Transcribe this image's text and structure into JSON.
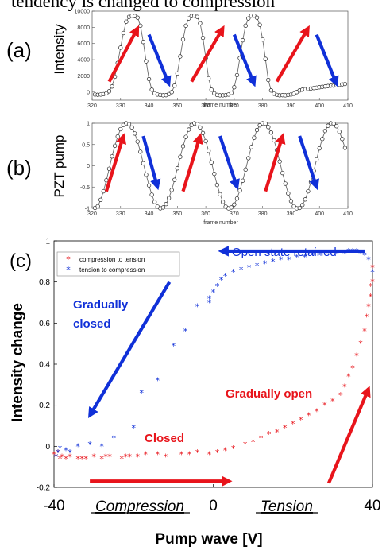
{
  "header_fragment": "tendency is changed to compression",
  "colors": {
    "red": "#e8141b",
    "blue": "#1030d8",
    "line": "#6b6b6b",
    "marker_edge": "#222222"
  },
  "chart_data": [
    {
      "type": "line",
      "panel_label": "(a)",
      "xlabel": "frame number",
      "ylabel": "Intensity",
      "xlim": [
        320,
        410
      ],
      "ylim": [
        -1000,
        10000
      ],
      "x_ticks": [
        320,
        330,
        340,
        350,
        360,
        370,
        380,
        390,
        400,
        410
      ],
      "y_ticks": [
        0,
        2000,
        4000,
        6000,
        8000,
        10000
      ],
      "series": [
        {
          "x": [
            321,
            322,
            323,
            324,
            325,
            326,
            327,
            328,
            329,
            330,
            331,
            332,
            333,
            334,
            335,
            336,
            337,
            338,
            339,
            340,
            341,
            342,
            343,
            344,
            345,
            346,
            347,
            348,
            349,
            350,
            351,
            352,
            353,
            354,
            355,
            356,
            357,
            358,
            359,
            360,
            361,
            362,
            363,
            364,
            365,
            366,
            367,
            368,
            369,
            370,
            371,
            372,
            373,
            374,
            375,
            376,
            377,
            378,
            379,
            380,
            381,
            382,
            383,
            384,
            385,
            386,
            387,
            388,
            389,
            390,
            391,
            392,
            393,
            394,
            395,
            396,
            397,
            398,
            399,
            400,
            401,
            402,
            403,
            404,
            405,
            406,
            407,
            408,
            409
          ],
          "y": [
            -300,
            -330,
            -300,
            -250,
            -150,
            100,
            700,
            1900,
            3600,
            5500,
            7300,
            8700,
            9300,
            9450,
            9400,
            9200,
            8200,
            6200,
            3800,
            1600,
            300,
            -150,
            -300,
            -350,
            -400,
            -380,
            -250,
            0,
            800,
            2300,
            4400,
            6500,
            8200,
            9100,
            9400,
            9450,
            9300,
            8500,
            6700,
            4200,
            1700,
            300,
            -150,
            -350,
            -400,
            -400,
            -380,
            -300,
            -100,
            600,
            2100,
            4200,
            6400,
            8200,
            9100,
            9450,
            9450,
            9200,
            8300,
            6500,
            4100,
            1500,
            200,
            -200,
            -350,
            -400,
            -380,
            -400,
            -350,
            -300,
            -200,
            0,
            200,
            300,
            350,
            400,
            450,
            500,
            550,
            600,
            650,
            700,
            750,
            800,
            800,
            850,
            900,
            950,
            1000
          ]
        }
      ],
      "arrows": [
        {
          "color": "red",
          "from": [
            326,
            1300
          ],
          "to": [
            336,
            7900
          ]
        },
        {
          "color": "blue",
          "from": [
            340,
            7100
          ],
          "to": [
            347,
            1000
          ]
        },
        {
          "color": "red",
          "from": [
            355,
            1300
          ],
          "to": [
            366,
            7900
          ]
        },
        {
          "color": "blue",
          "from": [
            370,
            7100
          ],
          "to": [
            377,
            1000
          ]
        },
        {
          "color": "red",
          "from": [
            385,
            1300
          ],
          "to": [
            396,
            7900
          ]
        },
        {
          "color": "blue",
          "from": [
            399,
            7100
          ],
          "to": [
            406,
            1000
          ]
        }
      ]
    },
    {
      "type": "line",
      "panel_label": "(b)",
      "xlabel": "frame number",
      "ylabel": "PZT pump",
      "xlim": [
        320,
        410
      ],
      "ylim": [
        -1,
        1
      ],
      "x_ticks": [
        320,
        330,
        340,
        350,
        360,
        370,
        380,
        390,
        400,
        410
      ],
      "y_ticks": [
        -1,
        -0.5,
        0,
        0.5,
        1
      ],
      "series": [
        {
          "x": [
            321,
            322,
            323,
            324,
            325,
            326,
            327,
            328,
            329,
            330,
            331,
            332,
            333,
            334,
            335,
            336,
            337,
            338,
            339,
            340,
            341,
            342,
            343,
            344,
            345,
            346,
            347,
            348,
            349,
            350,
            351,
            352,
            353,
            354,
            355,
            356,
            357,
            358,
            359,
            360,
            361,
            362,
            363,
            364,
            365,
            366,
            367,
            368,
            369,
            370,
            371,
            372,
            373,
            374,
            375,
            376,
            377,
            378,
            379,
            380,
            381,
            382,
            383,
            384,
            385,
            386,
            387,
            388,
            389,
            390,
            391,
            392,
            393,
            394,
            395,
            396,
            397,
            398,
            399,
            400,
            401,
            402,
            403,
            404,
            405,
            406,
            407,
            408,
            409
          ],
          "y": [
            -0.99,
            -0.95,
            -0.8,
            -0.6,
            -0.34,
            -0.07,
            0.22,
            0.47,
            0.69,
            0.86,
            0.96,
            1.0,
            0.98,
            0.9,
            0.76,
            0.57,
            0.33,
            0.06,
            -0.21,
            -0.46,
            -0.68,
            -0.85,
            -0.96,
            -1.0,
            -0.98,
            -0.9,
            -0.76,
            -0.57,
            -0.33,
            -0.06,
            0.21,
            0.46,
            0.68,
            0.85,
            0.96,
            1.0,
            0.98,
            0.9,
            0.77,
            0.58,
            0.35,
            0.08,
            -0.19,
            -0.45,
            -0.67,
            -0.85,
            -0.96,
            -1.0,
            -0.98,
            -0.91,
            -0.77,
            -0.58,
            -0.35,
            -0.09,
            0.18,
            0.44,
            0.66,
            0.84,
            0.95,
            1.0,
            0.99,
            0.91,
            0.78,
            0.6,
            0.37,
            0.1,
            -0.17,
            -0.42,
            -0.65,
            -0.83,
            -0.95,
            -1.0,
            -0.99,
            -0.92,
            -0.79,
            -0.6,
            -0.38,
            -0.12,
            0.15,
            0.41,
            0.63,
            0.82,
            0.94,
            1.0,
            0.99,
            0.93,
            0.8,
            0.63,
            0.42
          ]
        }
      ],
      "arrows": [
        {
          "color": "red",
          "from": [
            325,
            -0.6
          ],
          "to": [
            331,
            0.7
          ]
        },
        {
          "color": "blue",
          "from": [
            338,
            0.7
          ],
          "to": [
            343,
            -0.5
          ]
        },
        {
          "color": "red",
          "from": [
            352,
            -0.6
          ],
          "to": [
            358,
            0.7
          ]
        },
        {
          "color": "blue",
          "from": [
            365,
            0.7
          ],
          "to": [
            371,
            -0.5
          ]
        },
        {
          "color": "red",
          "from": [
            381,
            -0.6
          ],
          "to": [
            387,
            0.7
          ]
        },
        {
          "color": "blue",
          "from": [
            393,
            0.7
          ],
          "to": [
            399,
            -0.5
          ]
        }
      ]
    },
    {
      "type": "scatter",
      "panel_label": "(c)",
      "xlabel": "Pump wave [V]",
      "ylabel": "Intensity change",
      "xlim": [
        -40,
        40
      ],
      "ylim": [
        -0.2,
        1
      ],
      "x_ticks": [
        -40,
        0,
        40
      ],
      "y_ticks": [
        -0.2,
        0,
        0.2,
        0.4,
        0.6,
        0.8,
        1
      ],
      "y_tick_labels": [
        "-0.2",
        "0",
        "0.2",
        "0.4",
        "0.6",
        "0.8",
        "1"
      ],
      "legend": {
        "placement": "top-left",
        "entries": [
          "compression to tension",
          "tension to compression"
        ]
      },
      "series": [
        {
          "name": "compression to tension",
          "color": "red",
          "x": [
            -40,
            -39.5,
            -39,
            -38.5,
            -38,
            -37,
            -36,
            -34,
            -33,
            -32,
            -30,
            -28,
            -27,
            -26,
            -23,
            -22,
            -21,
            -19,
            -17,
            -14,
            -12,
            -8,
            -6,
            -4,
            -1,
            1,
            3,
            5,
            8,
            10,
            12,
            14,
            16,
            18,
            20,
            22,
            24,
            26,
            28,
            30,
            32,
            33,
            34,
            35,
            36,
            37,
            38,
            38.5,
            39,
            39.5,
            39.5,
            40,
            40
          ],
          "y": [
            -0.04,
            -0.05,
            -0.03,
            -0.06,
            -0.05,
            -0.06,
            -0.05,
            -0.06,
            -0.06,
            -0.06,
            -0.05,
            -0.06,
            -0.05,
            -0.05,
            -0.06,
            -0.05,
            -0.05,
            -0.05,
            -0.04,
            -0.04,
            -0.05,
            -0.04,
            -0.04,
            -0.03,
            -0.04,
            -0.03,
            -0.02,
            -0.01,
            0.01,
            0.02,
            0.04,
            0.06,
            0.07,
            0.09,
            0.11,
            0.13,
            0.15,
            0.17,
            0.2,
            0.22,
            0.25,
            0.29,
            0.34,
            0.38,
            0.44,
            0.5,
            0.56,
            0.63,
            0.68,
            0.73,
            0.78,
            0.8,
            0.87
          ]
        },
        {
          "name": "tension to compression",
          "color": "blue",
          "x": [
            -39.5,
            -39,
            -38.5,
            -37,
            -36,
            -34,
            -31,
            -28,
            -25,
            -20,
            -18,
            -14,
            -10,
            -7,
            -4,
            -1,
            -1,
            0,
            1,
            2,
            3,
            5,
            7,
            9,
            11,
            13,
            15,
            17,
            19,
            21,
            23,
            25,
            27,
            29,
            31,
            33,
            34,
            35,
            36,
            37,
            38,
            39,
            40
          ],
          "y": [
            -0.05,
            -0.03,
            -0.01,
            -0.02,
            -0.03,
            0.0,
            0.01,
            0.0,
            0.04,
            0.09,
            0.26,
            0.32,
            0.49,
            0.56,
            0.68,
            0.7,
            0.72,
            0.75,
            0.78,
            0.81,
            0.83,
            0.85,
            0.86,
            0.87,
            0.88,
            0.89,
            0.9,
            0.91,
            0.91,
            0.92,
            0.92,
            0.93,
            0.93,
            0.94,
            0.94,
            0.94,
            0.95,
            0.95,
            0.95,
            0.94,
            0.93,
            0.91,
            0.85
          ]
        }
      ],
      "annotations": [
        {
          "text": "Open state retained",
          "color": "blue"
        },
        {
          "text": "Gradually",
          "color": "blue"
        },
        {
          "text": "closed",
          "color": "blue"
        },
        {
          "text": "Gradually open",
          "color": "red"
        },
        {
          "text": "Closed",
          "color": "red"
        }
      ],
      "arrows": [
        {
          "color": "blue",
          "from": [
            38,
            0.95
          ],
          "to": [
            2,
            0.95
          ]
        },
        {
          "color": "blue",
          "from": [
            -11,
            0.8
          ],
          "to": [
            -31,
            0.15
          ]
        },
        {
          "color": "red",
          "from": [
            29,
            -0.18
          ],
          "to": [
            39,
            0.28
          ]
        },
        {
          "color": "red",
          "from": [
            -31,
            -0.17
          ],
          "to": [
            4,
            -0.17
          ]
        }
      ],
      "bottom_labels": [
        "Compression",
        "Tension"
      ]
    }
  ]
}
